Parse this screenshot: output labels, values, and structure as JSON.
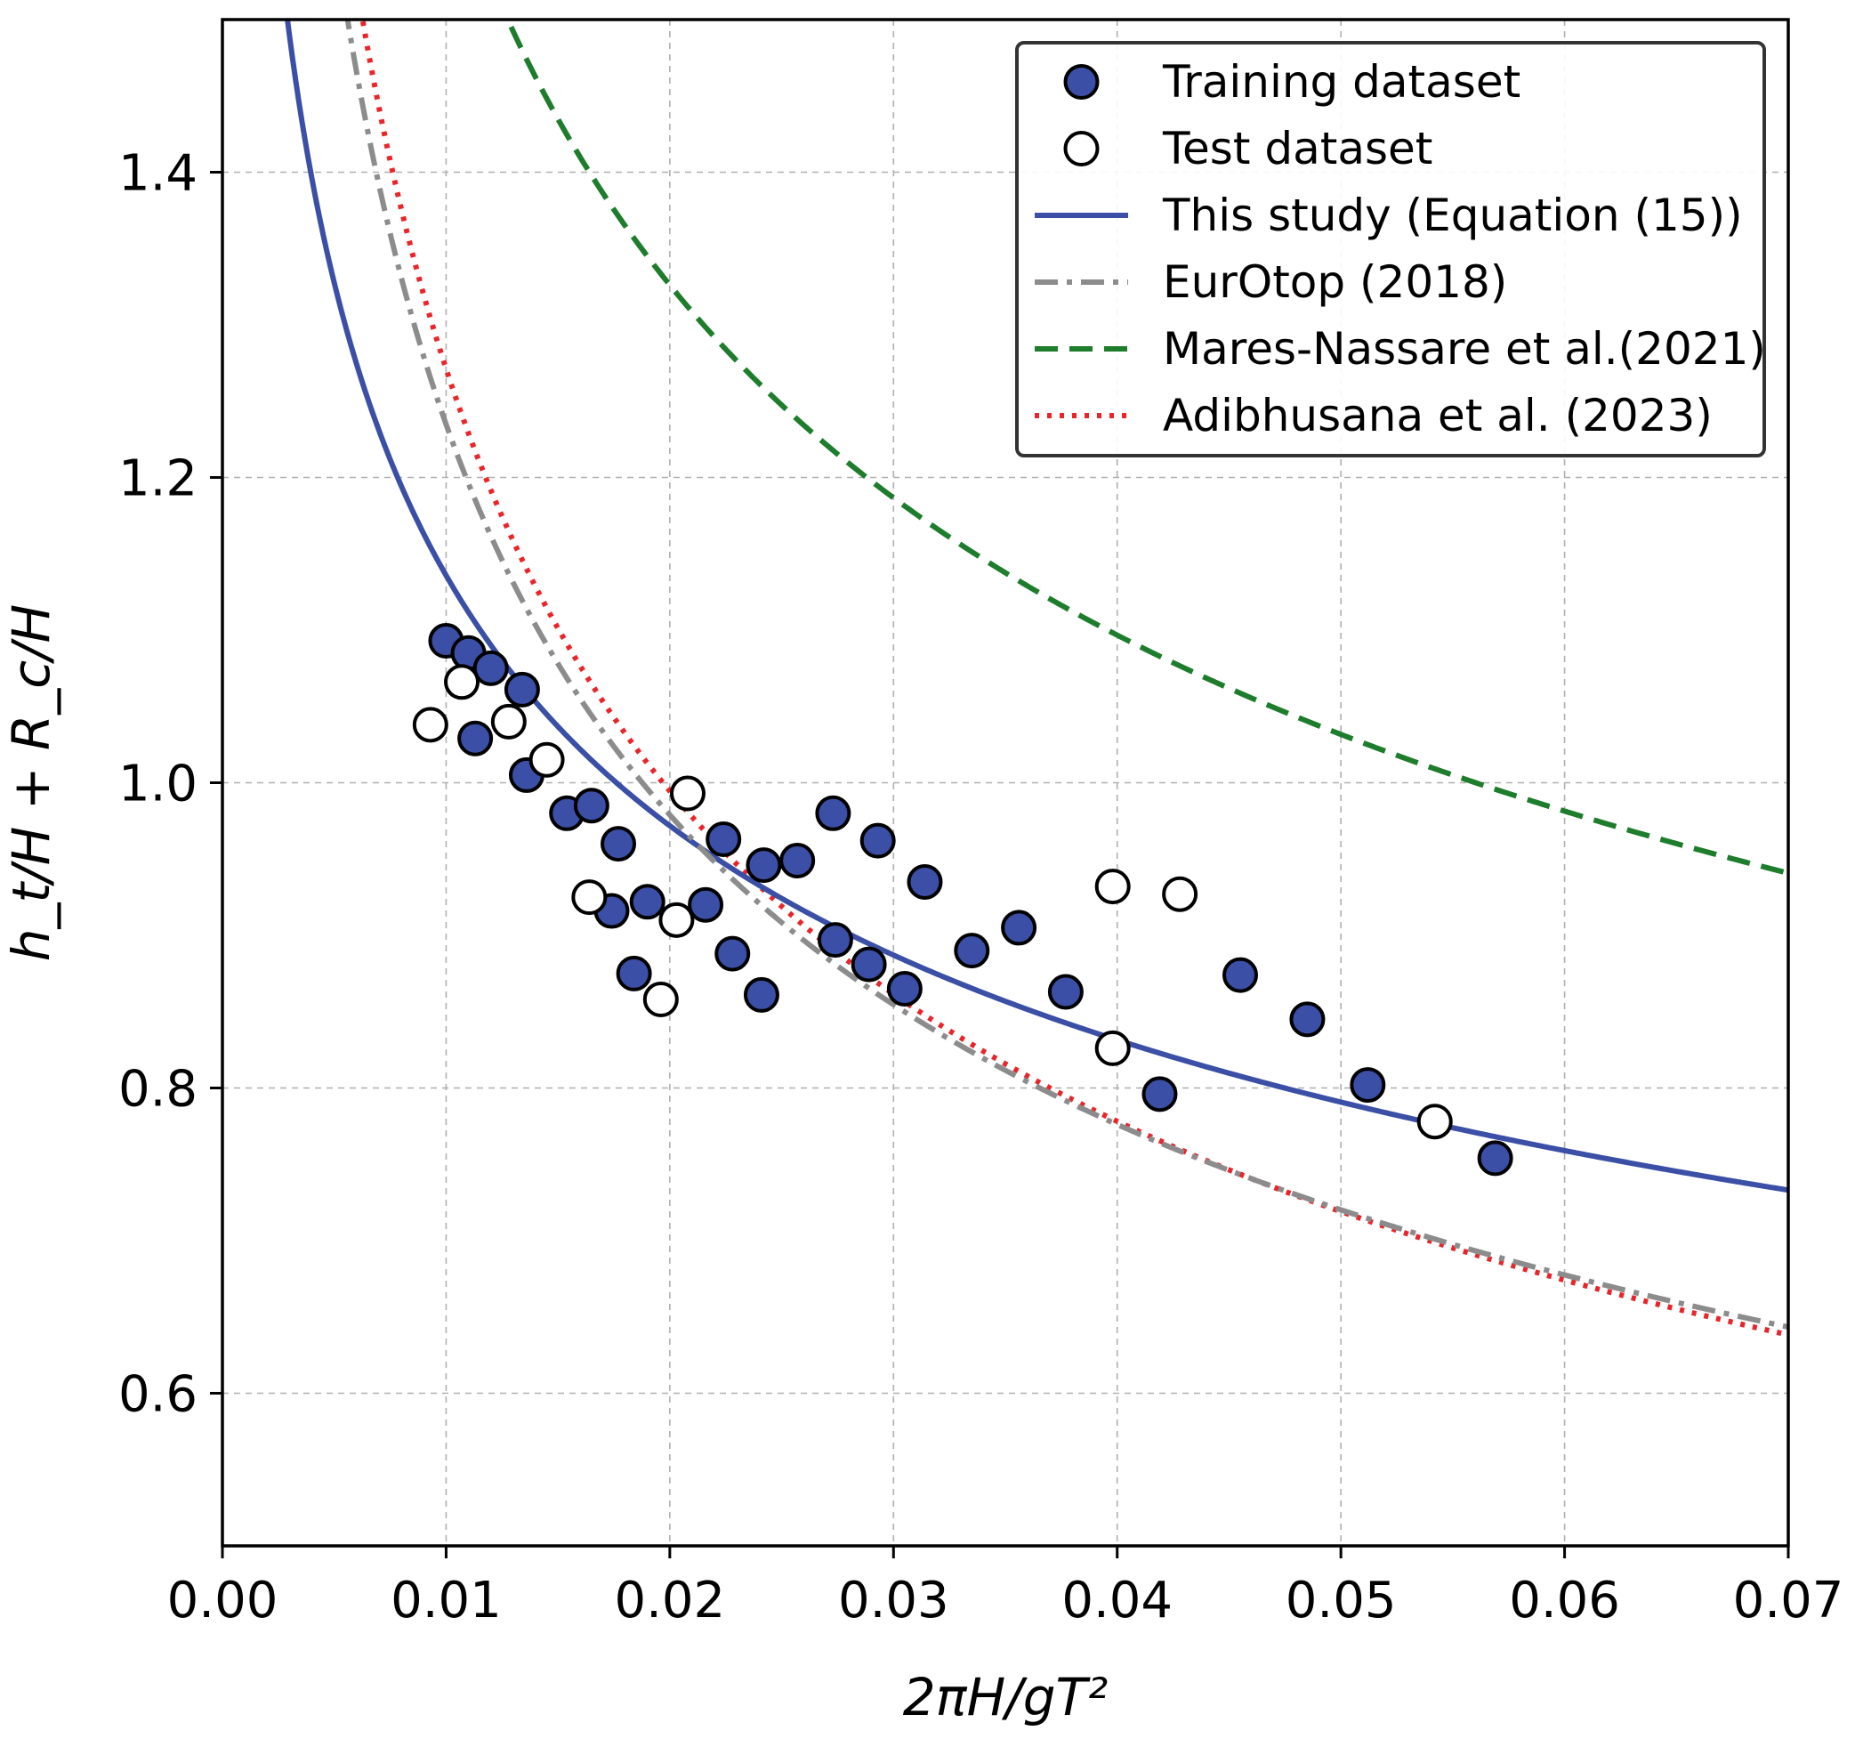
{
  "chart_data": {
    "type": "scatter",
    "title": "",
    "xlabel": "2πH/gT²",
    "ylabel": "h_t/H + R_c/H",
    "xlim": [
      0.0,
      0.07
    ],
    "ylim": [
      0.5,
      1.5
    ],
    "xticks": [
      0.0,
      0.01,
      0.02,
      0.03,
      0.04,
      0.05,
      0.06,
      0.07
    ],
    "xtick_labels": [
      "0.00",
      "0.01",
      "0.02",
      "0.03",
      "0.04",
      "0.05",
      "0.06",
      "0.07"
    ],
    "yticks": [
      0.6,
      0.8,
      1.0,
      1.2,
      1.4
    ],
    "ytick_labels": [
      "0.6",
      "0.8",
      "1.0",
      "1.2",
      "1.4"
    ],
    "grid": true,
    "legend_position": "top-right",
    "series": [
      {
        "name": "Training dataset",
        "kind": "scatter",
        "marker": "filled-circle",
        "color": "#3a4fa5",
        "edge": "#000000",
        "points": [
          [
            0.01,
            1.093
          ],
          [
            0.011,
            1.085
          ],
          [
            0.012,
            1.075
          ],
          [
            0.0113,
            1.029
          ],
          [
            0.0134,
            1.061
          ],
          [
            0.0136,
            1.005
          ],
          [
            0.0154,
            0.98
          ],
          [
            0.0165,
            0.985
          ],
          [
            0.0177,
            0.96
          ],
          [
            0.0174,
            0.916
          ],
          [
            0.0184,
            0.875
          ],
          [
            0.019,
            0.922
          ],
          [
            0.0216,
            0.92
          ],
          [
            0.0228,
            0.888
          ],
          [
            0.0224,
            0.963
          ],
          [
            0.0242,
            0.946
          ],
          [
            0.0241,
            0.861
          ],
          [
            0.0257,
            0.949
          ],
          [
            0.0273,
            0.98
          ],
          [
            0.0274,
            0.897
          ],
          [
            0.0289,
            0.881
          ],
          [
            0.0293,
            0.962
          ],
          [
            0.0305,
            0.865
          ],
          [
            0.0314,
            0.935
          ],
          [
            0.0335,
            0.89
          ],
          [
            0.0356,
            0.905
          ],
          [
            0.0377,
            0.863
          ],
          [
            0.0419,
            0.796
          ],
          [
            0.0455,
            0.874
          ],
          [
            0.0485,
            0.845
          ],
          [
            0.0512,
            0.802
          ],
          [
            0.0569,
            0.754
          ]
        ]
      },
      {
        "name": "Test dataset",
        "kind": "scatter",
        "marker": "open-circle",
        "color": "#ffffff",
        "edge": "#000000",
        "points": [
          [
            0.0093,
            1.038
          ],
          [
            0.0107,
            1.066
          ],
          [
            0.0128,
            1.04
          ],
          [
            0.0145,
            1.015
          ],
          [
            0.0164,
            0.925
          ],
          [
            0.0196,
            0.858
          ],
          [
            0.0203,
            0.91
          ],
          [
            0.0208,
            0.993
          ],
          [
            0.0398,
            0.932
          ],
          [
            0.0398,
            0.826
          ],
          [
            0.0428,
            0.927
          ],
          [
            0.0542,
            0.778
          ]
        ]
      },
      {
        "name": "This study (Equation (15))",
        "kind": "line",
        "style": "solid",
        "color": "#3a4fa5",
        "model": "power",
        "coef": 0.403,
        "exponent": -0.225
      },
      {
        "name": "EurOtop (2018)",
        "kind": "line",
        "style": "dashdot",
        "color": "#8c8c8c",
        "model": "power",
        "coef": 0.264,
        "exponent": -0.335
      },
      {
        "name": "Mares-Nassare et al.(2021)",
        "kind": "line",
        "style": "dashed",
        "color": "#1e7d2c",
        "model": "power",
        "coef": 0.454,
        "exponent": -0.274
      },
      {
        "name": "Adibhusana et al. (2023)",
        "kind": "line",
        "style": "dotted",
        "color": "#e8252a",
        "model": "power",
        "coef": 0.249,
        "exponent": -0.354
      }
    ]
  }
}
